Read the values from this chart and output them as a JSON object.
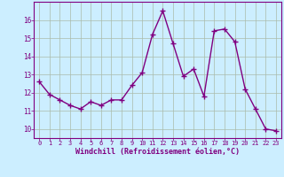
{
  "x": [
    0,
    1,
    2,
    3,
    4,
    5,
    6,
    7,
    8,
    9,
    10,
    11,
    12,
    13,
    14,
    15,
    16,
    17,
    18,
    19,
    20,
    21,
    22,
    23
  ],
  "y": [
    12.6,
    11.9,
    11.6,
    11.3,
    11.1,
    11.5,
    11.3,
    11.6,
    11.6,
    12.4,
    13.1,
    15.2,
    16.5,
    14.7,
    12.9,
    13.3,
    11.8,
    15.4,
    15.5,
    14.8,
    12.2,
    11.1,
    10.0,
    9.9
  ],
  "line_color": "#800080",
  "marker": "+",
  "marker_size": 4,
  "bg_color": "#cceeff",
  "grid_color": "#aabbaa",
  "xlabel": "Windchill (Refroidissement éolien,°C)",
  "xlabel_color": "#800080",
  "tick_color": "#800080",
  "ylim": [
    9.5,
    17.0
  ],
  "yticks": [
    10,
    11,
    12,
    13,
    14,
    15,
    16
  ],
  "xlim": [
    -0.5,
    23.5
  ],
  "xticks": [
    0,
    1,
    2,
    3,
    4,
    5,
    6,
    7,
    8,
    9,
    10,
    11,
    12,
    13,
    14,
    15,
    16,
    17,
    18,
    19,
    20,
    21,
    22,
    23
  ]
}
